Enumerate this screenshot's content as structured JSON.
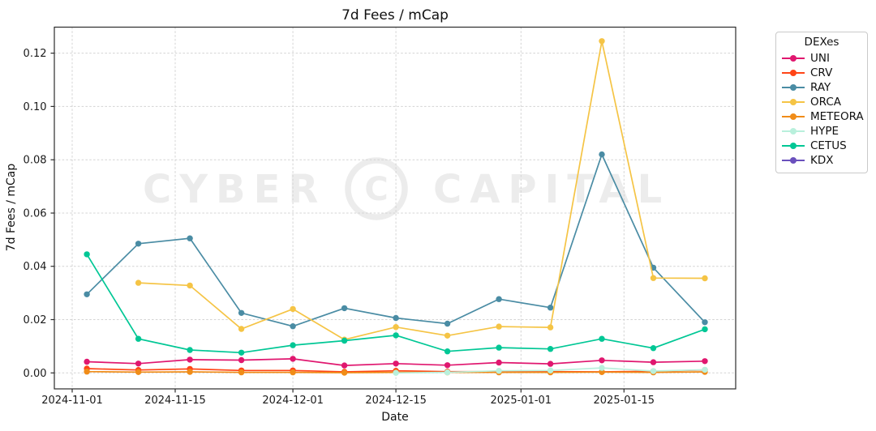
{
  "chart_data": {
    "type": "line",
    "title": "7d Fees / mCap",
    "xlabel": "Date",
    "ylabel": "7d Fees / mCap",
    "legend_title": "DEXes",
    "legend_position": "outside-right",
    "grid": true,
    "grid_style": "dashed",
    "x": [
      "2024-11-03",
      "2024-11-10",
      "2024-11-17",
      "2024-11-24",
      "2024-12-01",
      "2024-12-08",
      "2024-12-15",
      "2024-12-22",
      "2024-12-29",
      "2025-01-05",
      "2025-01-12",
      "2025-01-19",
      "2025-01-26"
    ],
    "x_tick_labels": [
      "2024-11-01",
      "2024-11-15",
      "2024-12-01",
      "2024-12-15",
      "2025-01-01",
      "2025-01-15"
    ],
    "y_ticks": [
      0.0,
      0.02,
      0.04,
      0.06,
      0.08,
      0.1,
      0.12
    ],
    "ylim": [
      -0.006,
      0.13
    ],
    "series": [
      {
        "name": "UNI",
        "color": "#e0176f",
        "values": [
          0.0042,
          0.0035,
          0.005,
          0.0048,
          0.0053,
          0.0028,
          0.0035,
          0.0029,
          0.0039,
          0.0034,
          0.0047,
          0.004,
          0.0044
        ]
      },
      {
        "name": "CRV",
        "color": "#ff4517",
        "values": [
          0.0016,
          0.0011,
          0.0015,
          0.0009,
          0.0009,
          0.0004,
          0.0008,
          0.0005,
          0.0005,
          0.0005,
          0.0004,
          0.0006,
          0.0011
        ]
      },
      {
        "name": "RAY",
        "color": "#4a8ca4",
        "values": [
          0.0295,
          0.0485,
          0.0505,
          0.0225,
          0.0175,
          0.0243,
          0.0206,
          0.0185,
          0.0277,
          0.0245,
          0.082,
          0.0395,
          0.019
        ]
      },
      {
        "name": "ORCA",
        "color": "#f5c445",
        "values": [
          null,
          0.0338,
          0.0328,
          0.0165,
          0.024,
          0.0125,
          0.0172,
          0.014,
          0.0174,
          0.0171,
          0.1245,
          0.0356,
          0.0355
        ]
      },
      {
        "name": "METEORA",
        "color": "#f08c18",
        "values": [
          0.0005,
          0.0003,
          0.0004,
          0.0002,
          0.0002,
          0.0001,
          0.0002,
          0.0002,
          0.0002,
          0.0002,
          0.0003,
          0.0002,
          0.0004
        ]
      },
      {
        "name": "HYPE",
        "color": "#b9f0dc",
        "values": [
          null,
          null,
          null,
          null,
          null,
          null,
          0.0,
          0.0002,
          0.0008,
          0.0009,
          0.0019,
          0.0007,
          0.0012
        ]
      },
      {
        "name": "CETUS",
        "color": "#00c795",
        "values": [
          0.0445,
          0.0128,
          0.0086,
          0.0076,
          0.0104,
          0.0121,
          0.0141,
          0.0081,
          0.0095,
          0.009,
          0.0128,
          0.0093,
          0.0164
        ]
      },
      {
        "name": "KDX",
        "color": "#6a50bd",
        "values": [
          null,
          null,
          null,
          null,
          null,
          null,
          null,
          null,
          null,
          null,
          null,
          null,
          null
        ]
      }
    ]
  },
  "watermark": {
    "text_left": "CYBER",
    "text_right": "CAPITAL",
    "color": "#ececec"
  }
}
